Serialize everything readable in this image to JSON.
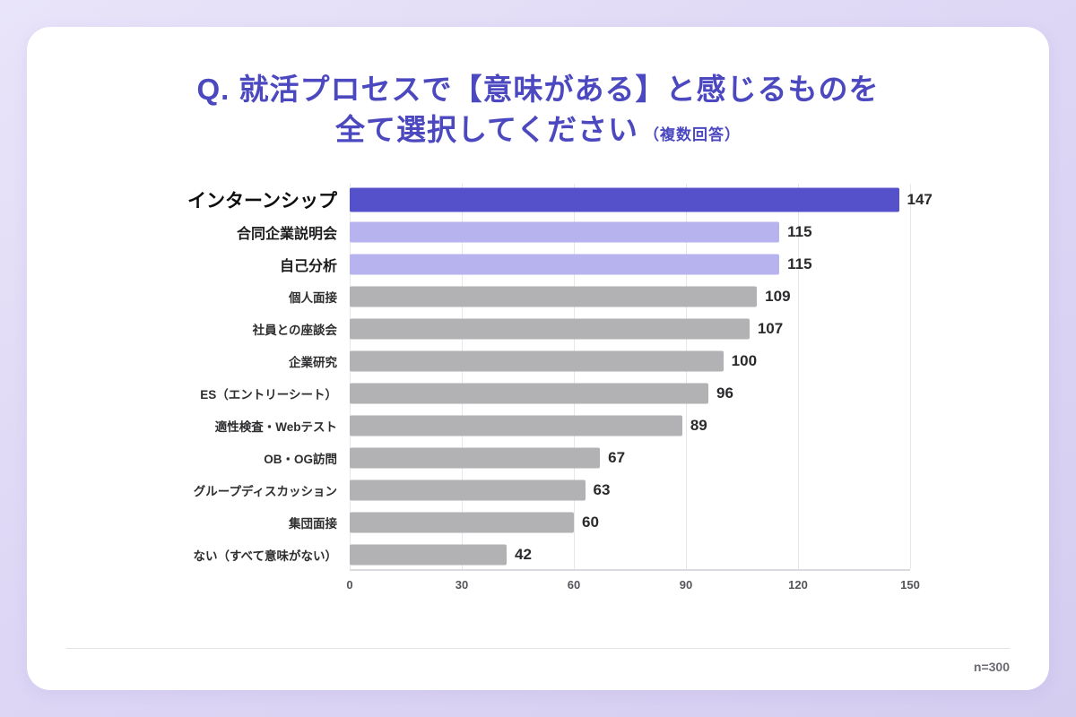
{
  "title": {
    "line1": "Q. 就活プロセスで【意味がある】と感じるものを",
    "line2": "全て選択してください",
    "note": "（複数回答）"
  },
  "footer": {
    "sample_size": "n=300"
  },
  "colors": {
    "title": "#4b48c0",
    "bar_primary": "#5551cb",
    "bar_secondary": "#b6b3ef",
    "bar_default": "#b2b2b5"
  },
  "chart_data": {
    "type": "bar",
    "orientation": "horizontal",
    "title": "Q. 就活プロセスで【意味がある】と感じるものを全て選択してください（複数回答）",
    "categories": [
      "インターンシップ",
      "合同企業説明会",
      "自己分析",
      "個人面接",
      "社員との座談会",
      "企業研究",
      "ES（エントリーシート）",
      "適性検査・Webテスト",
      "OB・OG訪問",
      "グループディスカッション",
      "集団面接",
      "ない（すべて意味がない）"
    ],
    "values": [
      147,
      115,
      115,
      109,
      107,
      100,
      96,
      89,
      67,
      63,
      60,
      42
    ],
    "styles": [
      "primary",
      "secondary",
      "secondary",
      "default",
      "default",
      "default",
      "default",
      "default",
      "default",
      "default",
      "default",
      "default"
    ],
    "xlim": [
      0,
      150
    ],
    "ticks": [
      0,
      30,
      60,
      90,
      120,
      150
    ],
    "grid": true,
    "value_labels": true,
    "legend": "none",
    "sample_note": "n=300"
  }
}
